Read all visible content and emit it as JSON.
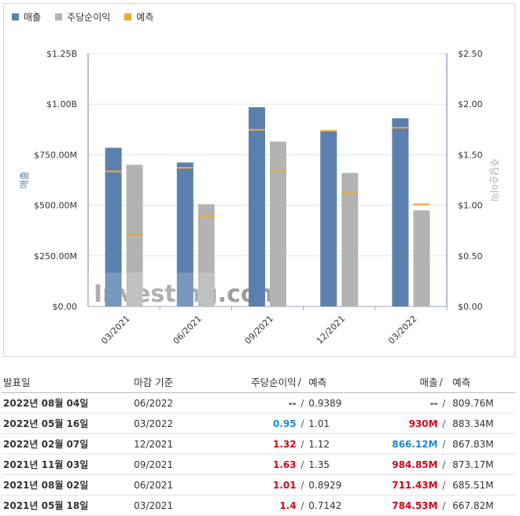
{
  "colors": {
    "revenue": "#5b80b0",
    "eps": "#b3b3b3",
    "forecast": "#f0a830",
    "beat": "#d9001b",
    "miss": "#1a88d9"
  },
  "legend": [
    "매출",
    "주당순이익",
    "예측"
  ],
  "watermark": "Investing.com",
  "chart_data": {
    "type": "bar",
    "categories": [
      "03/2021",
      "06/2021",
      "09/2021",
      "12/2021",
      "03/2022"
    ],
    "series": [
      {
        "name": "매출",
        "axis": "left",
        "values": [
          784.53,
          711.43,
          984.85,
          866.12,
          930
        ],
        "forecast": [
          667.82,
          685.51,
          873.17,
          867.83,
          883.34
        ]
      },
      {
        "name": "주당순이익",
        "axis": "right",
        "values": [
          1.4,
          1.01,
          1.63,
          1.32,
          0.95
        ],
        "forecast": [
          0.7142,
          0.8929,
          1.35,
          1.12,
          1.01
        ]
      }
    ],
    "ylabel": "매출",
    "y2label": "주당순이익",
    "ylim": [
      0,
      1250
    ],
    "y2lim": [
      0,
      2.5
    ],
    "yticks": [
      "$0.00",
      "$250.00M",
      "$500.00M",
      "$750.00M",
      "$1.00B",
      "$1.25B"
    ],
    "y2ticks": [
      "$0.00",
      "$0.50",
      "$1.00",
      "$1.50",
      "$2.00",
      "$2.50"
    ],
    "grid": true,
    "legend_position": "top-left"
  },
  "table": {
    "headers": {
      "date": "발표일",
      "period": "마감 기준",
      "eps": "주당순이익",
      "sep": "/",
      "eps_forecast": "예측",
      "revenue": "매출",
      "revenue_forecast": "예측"
    },
    "rows": [
      {
        "date": "2022년 08월 04일",
        "period": "06/2022",
        "eps": "--",
        "eps_forecast": "0.9389",
        "revenue": "--",
        "revenue_forecast": "809.76M",
        "eps_class": "",
        "rev_class": ""
      },
      {
        "date": "2022년 05월 16일",
        "period": "03/2022",
        "eps": "0.95",
        "eps_forecast": "1.01",
        "revenue": "930M",
        "revenue_forecast": "883.34M",
        "eps_class": "blue",
        "rev_class": "red"
      },
      {
        "date": "2022년 02월 07일",
        "period": "12/2021",
        "eps": "1.32",
        "eps_forecast": "1.12",
        "revenue": "866.12M",
        "revenue_forecast": "867.83M",
        "eps_class": "red",
        "rev_class": "blue"
      },
      {
        "date": "2021년 11월 03일",
        "period": "09/2021",
        "eps": "1.63",
        "eps_forecast": "1.35",
        "revenue": "984.85M",
        "revenue_forecast": "873.17M",
        "eps_class": "red",
        "rev_class": "red"
      },
      {
        "date": "2021년 08월 02일",
        "period": "06/2021",
        "eps": "1.01",
        "eps_forecast": "0.8929",
        "revenue": "711.43M",
        "revenue_forecast": "685.51M",
        "eps_class": "red",
        "rev_class": "red"
      },
      {
        "date": "2021년 05월 18일",
        "period": "03/2021",
        "eps": "1.4",
        "eps_forecast": "0.7142",
        "revenue": "784.53M",
        "revenue_forecast": "667.82M",
        "eps_class": "red",
        "rev_class": "red"
      }
    ]
  }
}
